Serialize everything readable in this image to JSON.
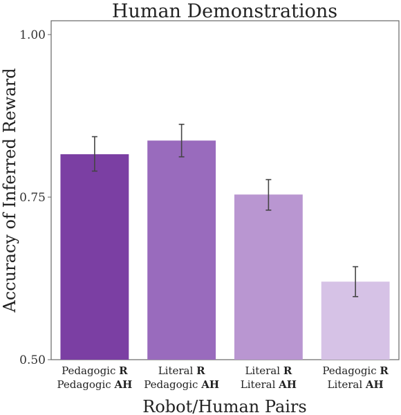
{
  "chart_data": {
    "type": "bar",
    "title": "Human Demonstrations",
    "xlabel": "Robot/Human Pairs",
    "ylabel": "Accuracy of Inferred Reward",
    "ylim": [
      0.5,
      1.0
    ],
    "yticks": [
      "0.50",
      "0.75",
      "1.00"
    ],
    "grid": false,
    "categories": [
      {
        "line1_text": "Pedagogic ",
        "line1_bold": "R",
        "line2_text": "Pedagogic ",
        "line2_bold": "AH"
      },
      {
        "line1_text": "Literal ",
        "line1_bold": "R",
        "line2_text": "Pedagogic ",
        "line2_bold": "AH"
      },
      {
        "line1_text": "Literal ",
        "line1_bold": "R",
        "line2_text": "Literal ",
        "line2_bold": "AH"
      },
      {
        "line1_text": "Pedagogic ",
        "line1_bold": "R",
        "line2_text": "Literal ",
        "line2_bold": "AH"
      }
    ],
    "values": [
      0.816,
      0.837,
      0.754,
      0.62
    ],
    "error_low": [
      0.79,
      0.812,
      0.73,
      0.597
    ],
    "error_high": [
      0.843,
      0.862,
      0.777,
      0.643
    ],
    "colors": [
      "#7b3fa3",
      "#996bbd",
      "#b996d1",
      "#d6c2e6"
    ],
    "error_color": "#444444"
  }
}
